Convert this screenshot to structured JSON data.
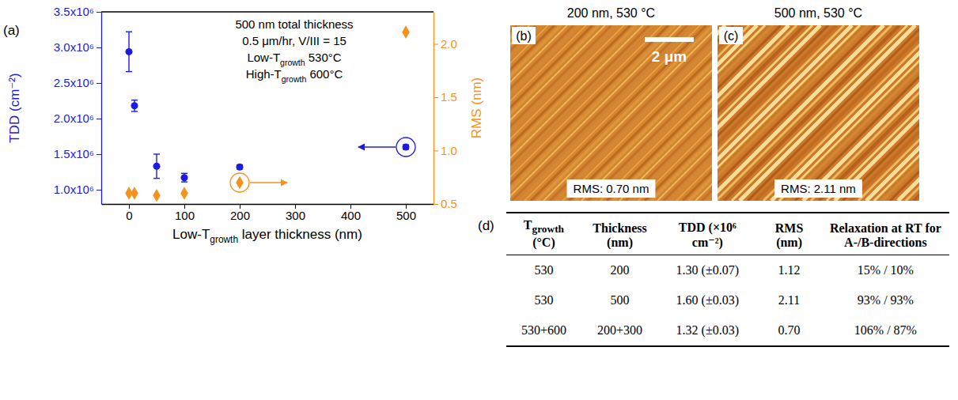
{
  "chart_data": {
    "type": "scatter",
    "panel_label": "(a)",
    "x": [
      0,
      10,
      50,
      100,
      200,
      500
    ],
    "xlim": [
      -50,
      550
    ],
    "xticks": [
      0,
      100,
      200,
      300,
      400,
      500
    ],
    "x_label": [
      {
        "text": "Low-T"
      },
      {
        "text": "growth",
        "sub": true
      },
      {
        "text": " layer thickness (nm)"
      }
    ],
    "ylim": [
      800000,
      3500000
    ],
    "yticks": [
      {
        "value": 1000000,
        "label": "1.0x10⁶"
      },
      {
        "value": 1500000,
        "label": "1.5x10⁶"
      },
      {
        "value": 2000000,
        "label": "2.0x10⁶"
      },
      {
        "value": 2500000,
        "label": "2.5x10⁶"
      },
      {
        "value": 3000000,
        "label": "3.0x10⁶"
      },
      {
        "value": 3500000,
        "label": "3.5x10⁶"
      }
    ],
    "y_label": "TDD (cm⁻²)",
    "y2lim": [
      0.5,
      2.3
    ],
    "y2ticks": [
      0.5,
      {
        "value": 1,
        "label": "1.0"
      },
      1.5,
      {
        "value": 2,
        "label": "2.0"
      }
    ],
    "y2_label": "RMS (nm)",
    "series": [
      {
        "color": "#1c1ce0",
        "marker": "circle",
        "values": [
          2940000,
          2180000,
          1330000,
          1170000,
          1320000,
          1600000
        ],
        "errors": [
          280000,
          80000,
          170000,
          60000,
          30000,
          30000
        ]
      },
      {
        "color": "#f5921e",
        "marker": "diamond",
        "axis": "y2",
        "values": [
          0.6,
          0.6,
          0.58,
          0.6,
          0.7,
          2.11
        ]
      }
    ],
    "annotations": [
      [
        {
          "text": "500 nm total thickness"
        }
      ],
      [
        {
          "text": "0.5 μm/hr, V/III = 15"
        }
      ],
      [
        {
          "text": "Low-T"
        },
        {
          "text": "growth",
          "sub": true
        },
        {
          "text": " 530°C"
        }
      ],
      [
        {
          "text": "High-T"
        },
        {
          "text": "growth",
          "sub": true
        },
        {
          "text": " 600°C"
        }
      ]
    ]
  },
  "images": {
    "scale_bar": "2 μm",
    "panels": [
      {
        "label": "(b)",
        "title": "200 nm, 530 °C",
        "caption": "RMS: 0.70 nm"
      },
      {
        "label": "(c)",
        "title": "500 nm, 530 °C",
        "caption": "RMS: 2.11 nm"
      }
    ]
  },
  "table": {
    "label": "(d)",
    "header": [
      [
        {
          "text": "T"
        },
        {
          "text": "growth",
          "sub": true
        },
        {
          "text": " (°C)"
        }
      ],
      [
        {
          "text": "Thickness (nm)"
        }
      ],
      [
        {
          "text": "TDD (×10⁶ cm⁻²)"
        }
      ],
      [
        {
          "text": "RMS (nm)"
        }
      ],
      [
        {
          "text": "Relaxation at RT for A-/B-directions"
        }
      ]
    ],
    "rows": [
      [
        "530",
        "200",
        "1.30 (±0.07)",
        "1.12",
        "15% / 10%"
      ],
      [
        "530",
        "500",
        "1.60 (±0.03)",
        "2.11",
        "93% / 93%"
      ],
      [
        "530+600",
        "200+300",
        "1.32 (±0.03)",
        "0.70",
        "106% / 87%"
      ]
    ]
  }
}
